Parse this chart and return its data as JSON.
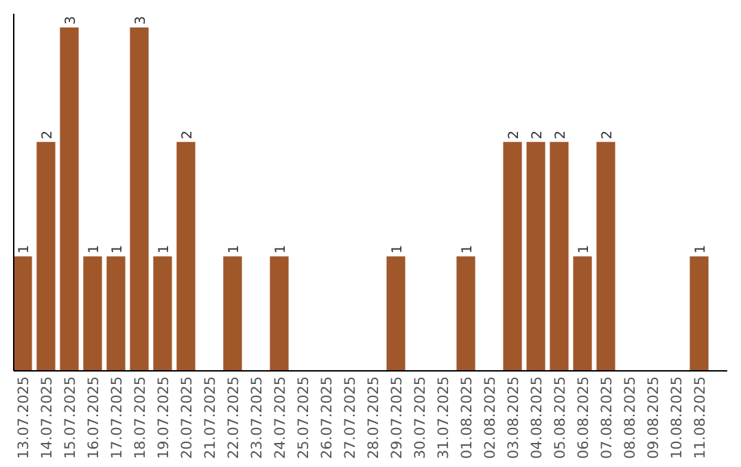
{
  "chart_data": {
    "type": "bar",
    "categories": [
      "13.07.2025",
      "14.07.2025",
      "15.07.2025",
      "16.07.2025",
      "17.07.2025",
      "18.07.2025",
      "19.07.2025",
      "20.07.2025",
      "21.07.2025",
      "22.07.2025",
      "23.07.2025",
      "24.07.2025",
      "25.07.2025",
      "26.07.2025",
      "27.07.2025",
      "28.07.2025",
      "29.07.2025",
      "30.07.2025",
      "31.07.2025",
      "01.08.2025",
      "02.08.2025",
      "03.08.2025",
      "04.08.2025",
      "05.08.2025",
      "06.08.2025",
      "07.08.2025",
      "08.08.2025",
      "09.08.2025",
      "10.08.2025",
      "11.08.2025"
    ],
    "values": [
      1,
      2,
      3,
      1,
      1,
      3,
      1,
      2,
      0,
      1,
      0,
      1,
      0,
      0,
      0,
      0,
      1,
      0,
      0,
      1,
      0,
      2,
      2,
      2,
      1,
      2,
      0,
      0,
      0,
      1
    ],
    "value_labels": [
      "1",
      "2",
      "3",
      "1",
      "1",
      "3",
      "1",
      "2",
      null,
      "1",
      null,
      "1",
      null,
      null,
      null,
      null,
      "1",
      null,
      null,
      "1",
      null,
      "2",
      "2",
      "2",
      "1",
      "2",
      null,
      null,
      null,
      "1"
    ],
    "color": "#a0572a",
    "ylim": [
      0,
      3.12
    ],
    "tick_labels": "x"
  }
}
